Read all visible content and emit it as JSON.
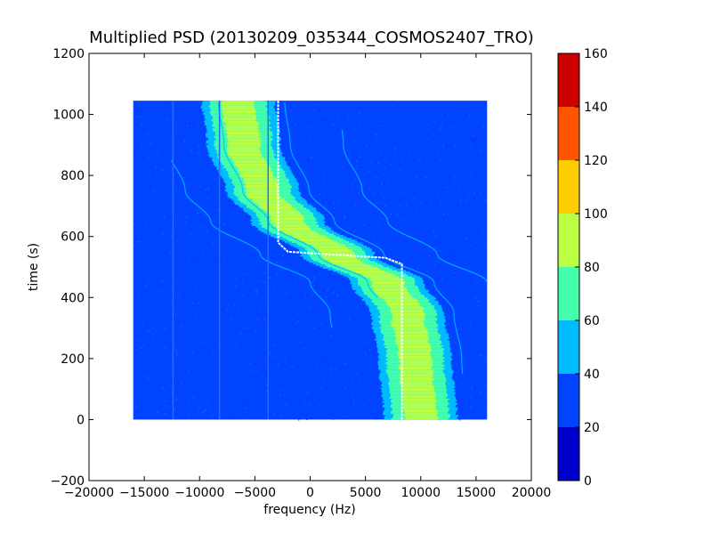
{
  "chart_data": {
    "type": "heatmap",
    "title": "Multiplied PSD (20130209_035344_COSMOS2407_TRO)",
    "xlabel": "frequency (Hz)",
    "ylabel": "time (s)",
    "xlim": [
      -20000,
      20000
    ],
    "ylim": [
      -200,
      1200
    ],
    "x_ticks": [
      -20000,
      -15000,
      -10000,
      -5000,
      0,
      5000,
      10000,
      15000,
      20000
    ],
    "x_tick_labels": [
      "−20000",
      "−15000",
      "−10000",
      "−5000",
      "0",
      "5000",
      "10000",
      "15000",
      "20000"
    ],
    "y_ticks": [
      -200,
      0,
      200,
      400,
      600,
      800,
      1000,
      1200
    ],
    "y_tick_labels": [
      "−200",
      "0",
      "200",
      "400",
      "600",
      "800",
      "1000",
      "1200"
    ],
    "data_extent": {
      "x": [
        -16000,
        16000
      ],
      "y": [
        0,
        1045
      ]
    },
    "background_level": 25,
    "main_trace": {
      "description_points": [
        {
          "time": 1045,
          "frequency": -6500
        },
        {
          "time": 900,
          "frequency": -6000
        },
        {
          "time": 750,
          "frequency": -4300
        },
        {
          "time": 650,
          "frequency": -2000
        },
        {
          "time": 540,
          "frequency": 2500
        },
        {
          "time": 450,
          "frequency": 7000
        },
        {
          "time": 350,
          "frequency": 8800
        },
        {
          "time": 200,
          "frequency": 9500
        },
        {
          "time": 0,
          "frequency": 10000
        }
      ],
      "peak_level": 90,
      "half_width_hz": 3300
    },
    "tracking_line": [
      {
        "time": 1045,
        "frequency": -2900
      },
      {
        "time": 580,
        "frequency": -2900
      },
      {
        "time": 550,
        "frequency": -2000
      },
      {
        "time": 530,
        "frequency": 6800
      },
      {
        "time": 510,
        "frequency": 8300
      },
      {
        "time": 0,
        "frequency": 8300
      }
    ],
    "colorbar": {
      "min": 0,
      "max": 160,
      "ticks": [
        0,
        20,
        40,
        60,
        80,
        100,
        120,
        140,
        160
      ],
      "tick_labels": [
        "0",
        "20",
        "40",
        "60",
        "80",
        "100",
        "120",
        "140",
        "160"
      ],
      "bins": [
        {
          "from": 0,
          "to": 20,
          "color": "#0000cc"
        },
        {
          "from": 20,
          "to": 40,
          "color": "#0044ff"
        },
        {
          "from": 40,
          "to": 60,
          "color": "#00bbff"
        },
        {
          "from": 60,
          "to": 80,
          "color": "#44ffaa"
        },
        {
          "from": 80,
          "to": 100,
          "color": "#bbff44"
        },
        {
          "from": 100,
          "to": 120,
          "color": "#ffcc00"
        },
        {
          "from": 120,
          "to": 140,
          "color": "#ff5500"
        },
        {
          "from": 140,
          "to": 160,
          "color": "#cc0000"
        }
      ]
    },
    "grid": false,
    "legend": "none"
  },
  "colors": {
    "tracking_line": "#ffffff",
    "axes": "#000000",
    "background": "#ffffff"
  }
}
